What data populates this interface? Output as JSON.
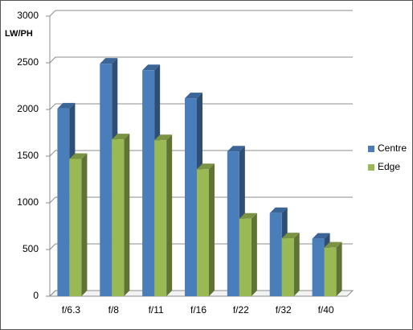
{
  "chart_data": {
    "type": "bar3d",
    "y_label": "LW/PH",
    "categories": [
      "f/6.3",
      "f/8",
      "f/11",
      "f/16",
      "f/22",
      "f/32",
      "f/40"
    ],
    "series": [
      {
        "name": "Centre",
        "color": "#4a7ebb",
        "values": [
          2010,
          2490,
          2420,
          2120,
          1550,
          890,
          615
        ]
      },
      {
        "name": "Edge",
        "color": "#98b954",
        "values": [
          1470,
          1680,
          1670,
          1360,
          830,
          620,
          520
        ]
      }
    ],
    "ylim": [
      0,
      3000
    ],
    "yticks": [
      0,
      500,
      1000,
      1500,
      2000,
      2500,
      3000
    ],
    "grid": true,
    "legend": "right"
  }
}
